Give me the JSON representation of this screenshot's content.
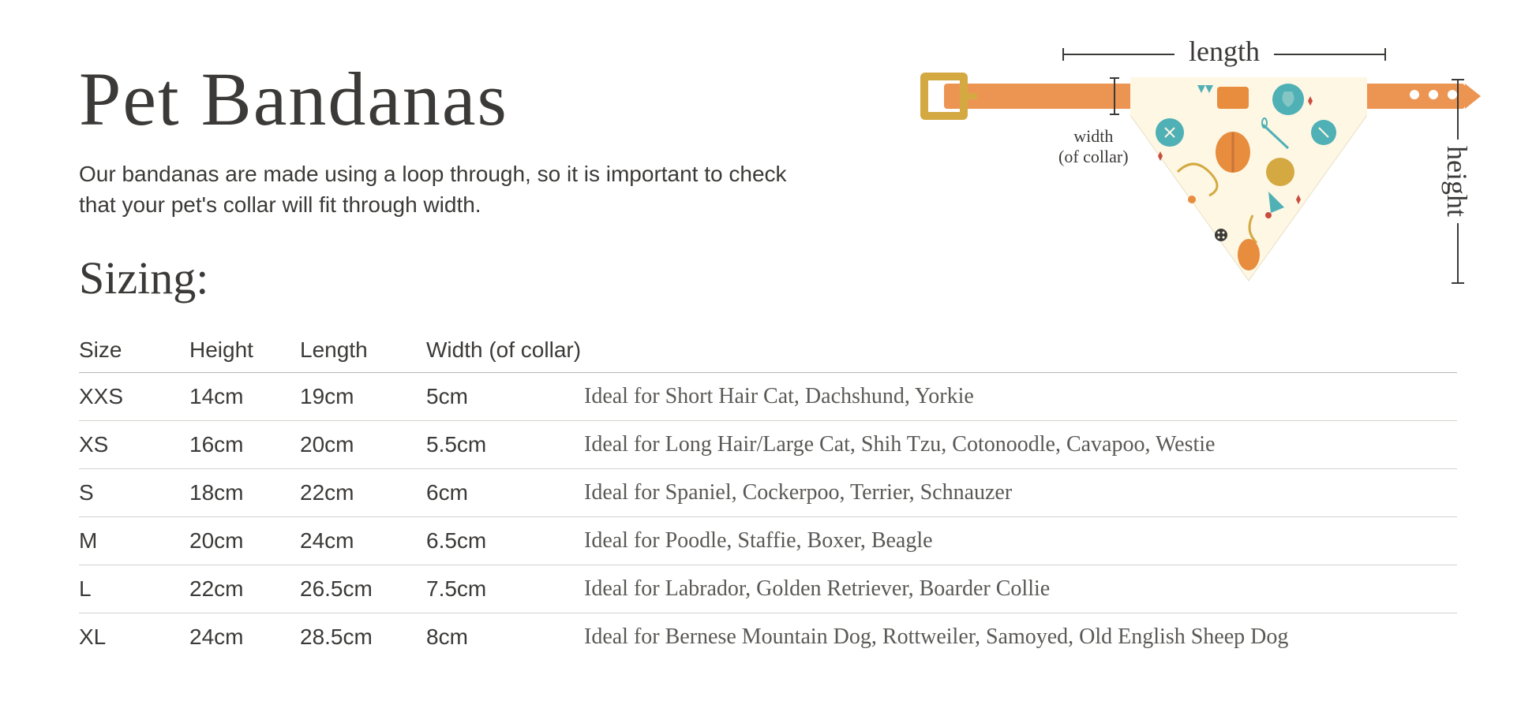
{
  "title": "Pet Bandanas",
  "description": "Our bandanas are made using a loop through, so it is important to check that your pet's collar will fit through width.",
  "sizing_heading": "Sizing:",
  "illustration": {
    "length_label": "length",
    "height_label": "height",
    "width_label_line1": "width",
    "width_label_line2": "(of collar)",
    "collar_color": "#ec9552",
    "buckle_color": "#d4a942",
    "bandana_bg": "#fdf7e4",
    "accent_teal": "#4fb0b5",
    "accent_orange": "#e88c3e",
    "accent_mustard": "#d4a942",
    "accent_red": "#c94d3e"
  },
  "table": {
    "columns": [
      "Size",
      "Height",
      "Length",
      "Width (of collar)",
      ""
    ],
    "rows": [
      {
        "size": "XXS",
        "height": "14cm",
        "length": "19cm",
        "width": "5cm",
        "ideal": "Ideal for Short Hair Cat, Dachshund, Yorkie"
      },
      {
        "size": "XS",
        "height": "16cm",
        "length": "20cm",
        "width": "5.5cm",
        "ideal": "Ideal for Long Hair/Large Cat, Shih Tzu, Cotonoodle, Cavapoo, Westie"
      },
      {
        "size": "S",
        "height": "18cm",
        "length": "22cm",
        "width": "6cm",
        "ideal": "Ideal for Spaniel, Cockerpoo, Terrier, Schnauzer"
      },
      {
        "size": "M",
        "height": "20cm",
        "length": "24cm",
        "width": "6.5cm",
        "ideal": "Ideal for Poodle, Staffie, Boxer, Beagle"
      },
      {
        "size": "L",
        "height": "22cm",
        "length": "26.5cm",
        "width": "7.5cm",
        "ideal": "Ideal for Labrador, Golden Retriever, Boarder Collie"
      },
      {
        "size": "XL",
        "height": "24cm",
        "length": "28.5cm",
        "width": "8cm",
        "ideal": "Ideal for Bernese Mountain Dog, Rottweiler, Samoyed, Old English Sheep Dog"
      }
    ]
  }
}
